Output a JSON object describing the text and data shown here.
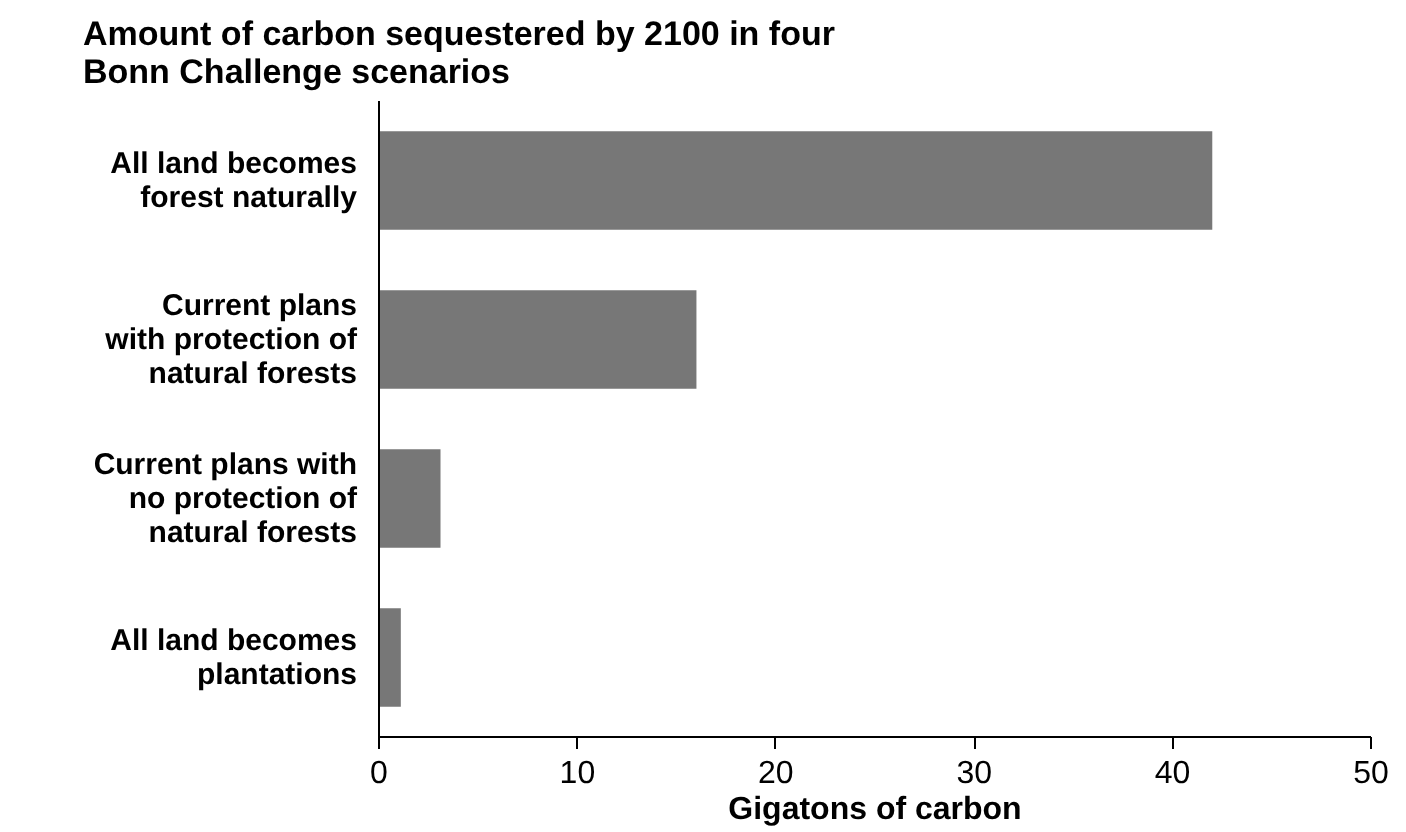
{
  "chart_data": {
    "type": "bar",
    "orientation": "horizontal",
    "title": "Amount of carbon sequestered by 2100 in four\nBonn Challenge scenarios",
    "categories": [
      "All land becomes\nforest naturally",
      "Current plans\nwith protection of\nnatural forests",
      "Current plans with\nno protection of\nnatural forests",
      "All land becomes\nplantations"
    ],
    "values": [
      42,
      16,
      3.1,
      1.1
    ],
    "color": "#777777",
    "xlabel": "Gigatons of carbon",
    "xlim": [
      0,
      50
    ],
    "xticks": [
      0,
      10,
      20,
      30,
      40,
      50
    ],
    "grid": false
  }
}
